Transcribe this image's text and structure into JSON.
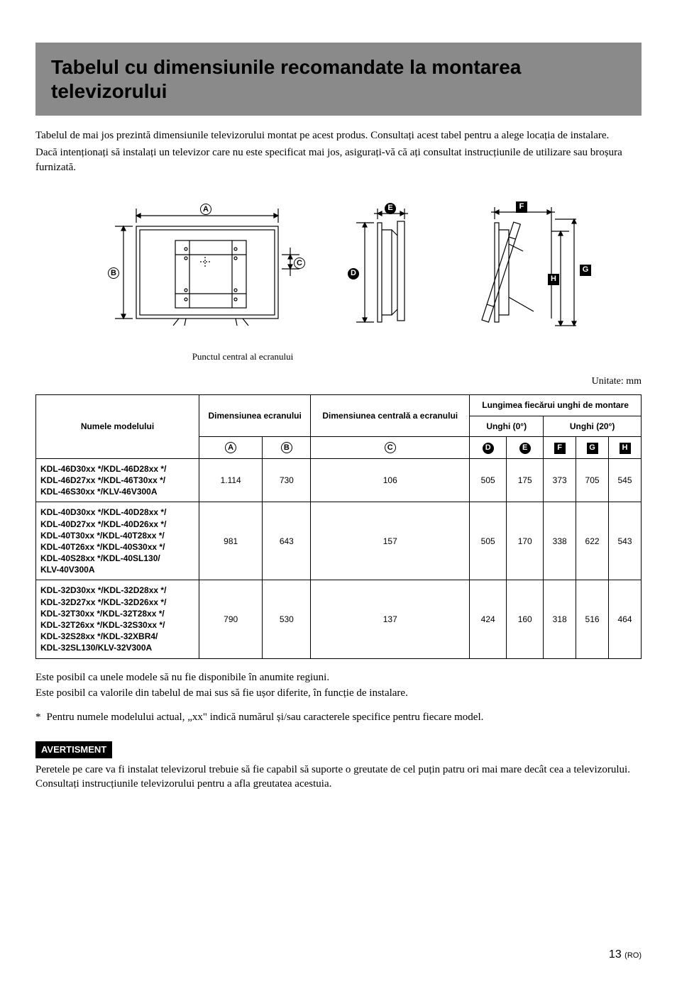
{
  "title": "Tabelul cu dimensiunile recomandate la montarea televizorului",
  "intro": {
    "p1": "Tabelul de mai jos prezintă dimensiunile televizorului montat pe acest produs. Consultați acest tabel pentru a alege locația de instalare.",
    "p2": "Dacă intenționați să instalați un televizor care nu este specificat mai jos, asigurați-vă că ați consultat instrucțiunile de utilizare sau broșura furnizată."
  },
  "diagram_caption": "Punctul central al ecranului",
  "labels": {
    "A": "A",
    "B": "B",
    "C": "C",
    "D": "D",
    "E": "E",
    "F": "F",
    "G": "G",
    "H": "H"
  },
  "diagram_colors": {
    "stroke": "#000000",
    "bg": "#ffffff"
  },
  "unit_line": "Unitate: mm",
  "table": {
    "headers": {
      "model": "Numele modelului",
      "screen_dim": "Dimensiunea ecranului",
      "center_dim": "Dimensiunea centrală a ecranului",
      "angle_len": "Lungimea fiecărui unghi de montare",
      "angle_0": "Unghi (0°)",
      "angle_20": "Unghi (20°)"
    },
    "rows": [
      {
        "model": "KDL-46D30xx */KDL-46D28xx */\nKDL-46D27xx */KDL-46T30xx */\nKDL-46S30xx */KLV-46V300A",
        "A": "1.114",
        "B": "730",
        "C": "106",
        "D": "505",
        "E": "175",
        "F": "373",
        "G": "705",
        "H": "545"
      },
      {
        "model": "KDL-40D30xx */KDL-40D28xx */\nKDL-40D27xx */KDL-40D26xx */\nKDL-40T30xx */KDL-40T28xx */\nKDL-40T26xx */KDL-40S30xx */\nKDL-40S28xx */KDL-40SL130/\nKLV-40V300A",
        "A": "981",
        "B": "643",
        "C": "157",
        "D": "505",
        "E": "170",
        "F": "338",
        "G": "622",
        "H": "543"
      },
      {
        "model": "KDL-32D30xx */KDL-32D28xx */\nKDL-32D27xx */KDL-32D26xx */\nKDL-32T30xx */KDL-32T28xx */\nKDL-32T26xx */KDL-32S30xx */\nKDL-32S28xx */KDL-32XBR4/\nKDL-32SL130/KLV-32V300A",
        "A": "790",
        "B": "530",
        "C": "137",
        "D": "424",
        "E": "160",
        "F": "318",
        "G": "516",
        "H": "464"
      }
    ]
  },
  "notes": {
    "n1": "Este posibil ca unele modele să nu fie disponibile în anumite regiuni.",
    "n2": "Este posibil ca valorile din tabelul de mai sus să fie ușor diferite, în funcție de instalare.",
    "asterisk": "*",
    "asterisk_text": "Pentru numele modelului actual, „xx\" indică numărul și/sau caracterele specifice pentru fiecare model."
  },
  "warning": {
    "label": "AVERTISMENT",
    "text": "Peretele pe care va fi instalat televizorul trebuie să fie capabil să suporte o greutate de cel puțin patru ori mai mare decât cea a televizorului. Consultați instrucțiunile televizorului pentru a afla greutatea acestuia."
  },
  "page": {
    "num": "13",
    "lang": "(RO)"
  }
}
